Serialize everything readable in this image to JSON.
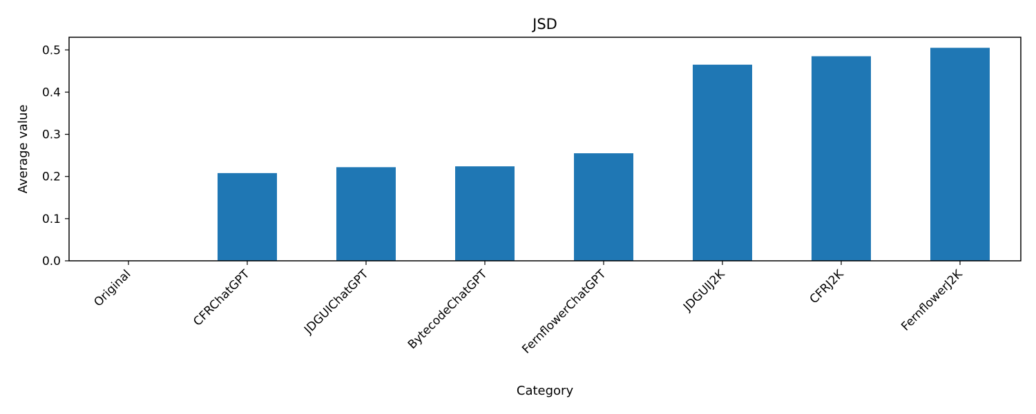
{
  "chart_data": {
    "type": "bar",
    "title": "JSD",
    "xlabel": "Category",
    "ylabel": "Average value",
    "categories": [
      "Original",
      "CFRChatGPT",
      "JDGUIChatGPT",
      "BytecodeChatGPT",
      "FernflowerChatGPT",
      "JDGUIJ2K",
      "CFRJ2K",
      "FernflowerJ2K"
    ],
    "values": [
      0.0,
      0.208,
      0.222,
      0.224,
      0.255,
      0.465,
      0.485,
      0.505
    ],
    "ylim": [
      0,
      0.53
    ],
    "yticks": [
      "0.0",
      "0.1",
      "0.2",
      "0.3",
      "0.4",
      "0.5"
    ],
    "bar_color": "#1f77b4",
    "grid": false
  }
}
